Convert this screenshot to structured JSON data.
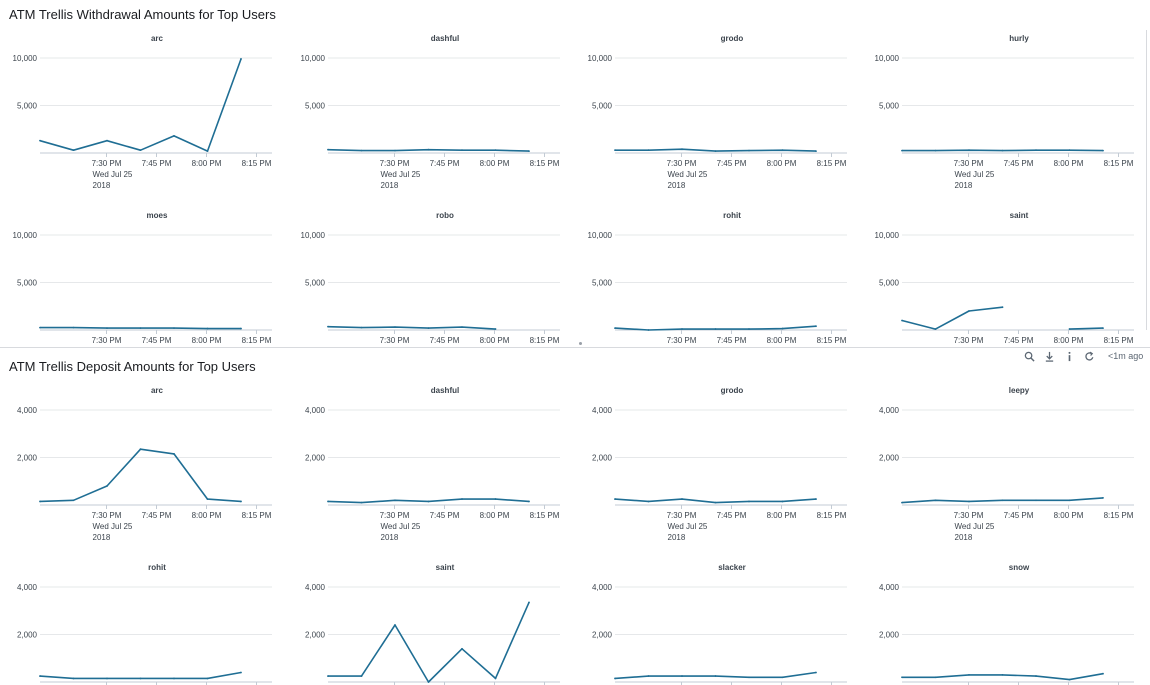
{
  "colors": {
    "series": "#1f6e94",
    "grid": "#e6e8ea",
    "axis": "#c3cbd4",
    "text": "#3c444d"
  },
  "x_labels": [
    "7:30 PM",
    "7:45 PM",
    "8:00 PM",
    "8:15 PM"
  ],
  "x_date_lines": [
    "Wed Jul 25",
    "2018"
  ],
  "toolbar": {
    "icons": [
      "search-icon",
      "export-icon",
      "info-icon",
      "refresh-icon"
    ],
    "time": "<1m ago"
  },
  "panels": [
    {
      "id": "withdrawal",
      "title": "ATM Trellis Withdrawal Amounts for Top Users",
      "y_ticks": [
        "10,000",
        "5,000"
      ],
      "y_tick_values": [
        10000,
        5000
      ],
      "ylim": [
        0,
        10000
      ]
    },
    {
      "id": "deposit",
      "title": "ATM Trellis Deposit Amounts for Top Users",
      "y_ticks": [
        "4,000",
        "2,000"
      ],
      "y_tick_values": [
        4000,
        2000
      ],
      "ylim": [
        0,
        4000
      ]
    }
  ],
  "chart_data": [
    {
      "type": "line",
      "panel": "withdrawal",
      "title": "arc",
      "x": [
        "7:15 PM",
        "7:22 PM",
        "7:30 PM",
        "7:37 PM",
        "7:45 PM",
        "7:52 PM",
        "8:00 PM",
        "8:07 PM",
        "8:15 PM"
      ],
      "series": [
        {
          "values": [
            1300,
            300,
            1300,
            300,
            1800,
            200,
            9900,
            null,
            null
          ]
        }
      ],
      "xlabel": "",
      "ylabel": "",
      "ylim": [
        0,
        10000
      ],
      "grid": true,
      "legend": "none"
    },
    {
      "type": "line",
      "panel": "withdrawal",
      "title": "dashful",
      "x": [
        "7:15 PM",
        "7:22 PM",
        "7:30 PM",
        "7:37 PM",
        "7:45 PM",
        "7:52 PM",
        "8:00 PM",
        "8:07 PM",
        "8:15 PM"
      ],
      "series": [
        {
          "values": [
            350,
            250,
            250,
            350,
            300,
            300,
            200,
            null,
            null
          ]
        }
      ],
      "xlabel": "",
      "ylabel": "",
      "ylim": [
        0,
        10000
      ],
      "grid": true,
      "legend": "none"
    },
    {
      "type": "line",
      "panel": "withdrawal",
      "title": "grodo",
      "x": [
        "7:15 PM",
        "7:22 PM",
        "7:30 PM",
        "7:37 PM",
        "7:45 PM",
        "7:52 PM",
        "8:00 PM",
        "8:07 PM",
        "8:15 PM"
      ],
      "series": [
        {
          "values": [
            300,
            300,
            400,
            200,
            250,
            300,
            200,
            null,
            null
          ]
        }
      ],
      "xlabel": "",
      "ylabel": "",
      "ylim": [
        0,
        10000
      ],
      "grid": true,
      "legend": "none"
    },
    {
      "type": "line",
      "panel": "withdrawal",
      "title": "hurly",
      "x": [
        "7:15 PM",
        "7:22 PM",
        "7:30 PM",
        "7:37 PM",
        "7:45 PM",
        "7:52 PM",
        "8:00 PM",
        "8:07 PM",
        "8:15 PM"
      ],
      "series": [
        {
          "values": [
            250,
            250,
            300,
            250,
            300,
            300,
            250,
            null,
            null
          ]
        }
      ],
      "xlabel": "",
      "ylabel": "",
      "ylim": [
        0,
        10000
      ],
      "grid": true,
      "legend": "none"
    },
    {
      "type": "line",
      "panel": "withdrawal",
      "title": "moes",
      "x": [
        "7:15 PM",
        "7:22 PM",
        "7:30 PM",
        "7:37 PM",
        "7:45 PM",
        "7:52 PM",
        "8:00 PM",
        "8:07 PM",
        "8:15 PM"
      ],
      "series": [
        {
          "values": [
            250,
            250,
            200,
            200,
            200,
            150,
            150,
            null,
            null
          ]
        }
      ],
      "xlabel": "",
      "ylabel": "",
      "ylim": [
        0,
        10000
      ],
      "grid": true,
      "legend": "none"
    },
    {
      "type": "line",
      "panel": "withdrawal",
      "title": "robo",
      "x": [
        "7:15 PM",
        "7:22 PM",
        "7:30 PM",
        "7:37 PM",
        "7:45 PM",
        "7:52 PM",
        "8:00 PM",
        "8:07 PM",
        "8:15 PM"
      ],
      "series": [
        {
          "values": [
            350,
            250,
            300,
            200,
            300,
            100,
            null,
            null,
            null
          ]
        }
      ],
      "xlabel": "",
      "ylabel": "",
      "ylim": [
        0,
        10000
      ],
      "grid": true,
      "legend": "none"
    },
    {
      "type": "line",
      "panel": "withdrawal",
      "title": "rohit",
      "x": [
        "7:15 PM",
        "7:22 PM",
        "7:30 PM",
        "7:37 PM",
        "7:45 PM",
        "7:52 PM",
        "8:00 PM",
        "8:07 PM",
        "8:15 PM"
      ],
      "series": [
        {
          "values": [
            200,
            0,
            100,
            100,
            100,
            150,
            400,
            null,
            null
          ]
        }
      ],
      "xlabel": "",
      "ylabel": "",
      "ylim": [
        0,
        10000
      ],
      "grid": true,
      "legend": "none"
    },
    {
      "type": "line",
      "panel": "withdrawal",
      "title": "saint",
      "x": [
        "7:15 PM",
        "7:22 PM",
        "7:30 PM",
        "7:37 PM",
        "7:45 PM",
        "7:52 PM",
        "8:00 PM",
        "8:07 PM",
        "8:15 PM"
      ],
      "series": [
        {
          "values": [
            1000,
            100,
            2000,
            2400,
            null,
            100,
            200,
            null,
            null
          ]
        }
      ],
      "xlabel": "",
      "ylabel": "",
      "ylim": [
        0,
        10000
      ],
      "grid": true,
      "legend": "none"
    },
    {
      "type": "line",
      "panel": "deposit",
      "title": "arc",
      "x": [
        "7:15 PM",
        "7:22 PM",
        "7:30 PM",
        "7:37 PM",
        "7:45 PM",
        "7:52 PM",
        "8:00 PM",
        "8:07 PM",
        "8:15 PM"
      ],
      "series": [
        {
          "values": [
            150,
            200,
            800,
            2350,
            2150,
            250,
            150,
            null,
            null
          ]
        }
      ],
      "xlabel": "",
      "ylabel": "",
      "ylim": [
        0,
        4000
      ],
      "grid": true,
      "legend": "none"
    },
    {
      "type": "line",
      "panel": "deposit",
      "title": "dashful",
      "x": [
        "7:15 PM",
        "7:22 PM",
        "7:30 PM",
        "7:37 PM",
        "7:45 PM",
        "7:52 PM",
        "8:00 PM",
        "8:07 PM",
        "8:15 PM"
      ],
      "series": [
        {
          "values": [
            150,
            100,
            200,
            150,
            250,
            250,
            150,
            null,
            null
          ]
        }
      ],
      "xlabel": "",
      "ylabel": "",
      "ylim": [
        0,
        4000
      ],
      "grid": true,
      "legend": "none"
    },
    {
      "type": "line",
      "panel": "deposit",
      "title": "grodo",
      "x": [
        "7:15 PM",
        "7:22 PM",
        "7:30 PM",
        "7:37 PM",
        "7:45 PM",
        "7:52 PM",
        "8:00 PM",
        "8:07 PM",
        "8:15 PM"
      ],
      "series": [
        {
          "values": [
            250,
            150,
            250,
            100,
            150,
            150,
            250,
            null,
            null
          ]
        }
      ],
      "xlabel": "",
      "ylabel": "",
      "ylim": [
        0,
        4000
      ],
      "grid": true,
      "legend": "none"
    },
    {
      "type": "line",
      "panel": "deposit",
      "title": "leepy",
      "x": [
        "7:15 PM",
        "7:22 PM",
        "7:30 PM",
        "7:37 PM",
        "7:45 PM",
        "7:52 PM",
        "8:00 PM",
        "8:07 PM",
        "8:15 PM"
      ],
      "series": [
        {
          "values": [
            100,
            200,
            150,
            200,
            200,
            200,
            300,
            null,
            null
          ]
        }
      ],
      "xlabel": "",
      "ylabel": "",
      "ylim": [
        0,
        4000
      ],
      "grid": true,
      "legend": "none"
    },
    {
      "type": "line",
      "panel": "deposit",
      "title": "rohit",
      "x": [
        "7:15 PM",
        "7:22 PM",
        "7:30 PM",
        "7:37 PM",
        "7:45 PM",
        "7:52 PM",
        "8:00 PM",
        "8:07 PM",
        "8:15 PM"
      ],
      "series": [
        {
          "values": [
            250,
            150,
            150,
            150,
            150,
            150,
            400,
            null,
            null
          ]
        }
      ],
      "xlabel": "",
      "ylabel": "",
      "ylim": [
        0,
        4000
      ],
      "grid": true,
      "legend": "none"
    },
    {
      "type": "line",
      "panel": "deposit",
      "title": "saint",
      "x": [
        "7:15 PM",
        "7:22 PM",
        "7:30 PM",
        "7:37 PM",
        "7:45 PM",
        "7:52 PM",
        "8:00 PM",
        "8:07 PM",
        "8:15 PM"
      ],
      "series": [
        {
          "values": [
            250,
            250,
            2400,
            0,
            1400,
            150,
            3350,
            null,
            null
          ]
        }
      ],
      "xlabel": "",
      "ylabel": "",
      "ylim": [
        0,
        4000
      ],
      "grid": true,
      "legend": "none"
    },
    {
      "type": "line",
      "panel": "deposit",
      "title": "slacker",
      "x": [
        "7:15 PM",
        "7:22 PM",
        "7:30 PM",
        "7:37 PM",
        "7:45 PM",
        "7:52 PM",
        "8:00 PM",
        "8:07 PM",
        "8:15 PM"
      ],
      "series": [
        {
          "values": [
            150,
            250,
            250,
            250,
            200,
            200,
            400,
            null,
            null
          ]
        }
      ],
      "xlabel": "",
      "ylabel": "",
      "ylim": [
        0,
        4000
      ],
      "grid": true,
      "legend": "none"
    },
    {
      "type": "line",
      "panel": "deposit",
      "title": "snow",
      "x": [
        "7:15 PM",
        "7:22 PM",
        "7:30 PM",
        "7:37 PM",
        "7:45 PM",
        "7:52 PM",
        "8:00 PM",
        "8:07 PM",
        "8:15 PM"
      ],
      "series": [
        {
          "values": [
            200,
            200,
            300,
            300,
            250,
            100,
            350,
            null,
            null
          ]
        }
      ],
      "xlabel": "",
      "ylabel": "",
      "ylim": [
        0,
        4000
      ],
      "grid": true,
      "legend": "none"
    }
  ]
}
